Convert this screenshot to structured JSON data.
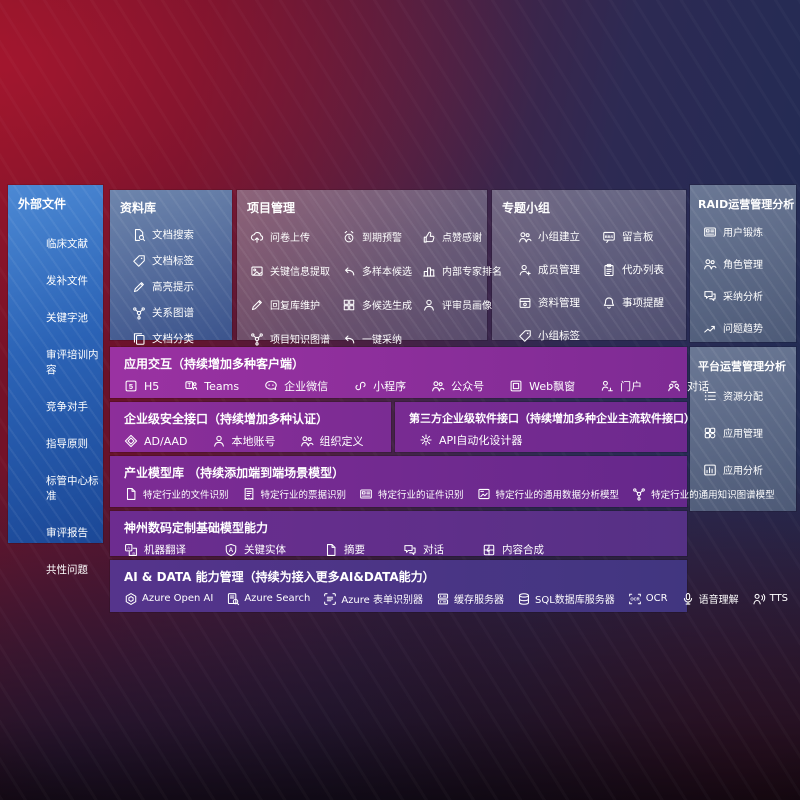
{
  "colors": {
    "sidebar_blue": "#2b63b6",
    "panel_gray": "#787490",
    "panel_slate": "#5d6b84",
    "row_magenta": "#9a32a2",
    "row_indigo": "#413680",
    "background_red": "#7d1226",
    "background_navy": "#1f2c55"
  },
  "sidebar": {
    "title": "外部文件",
    "items": [
      "临床文献",
      "发补文件",
      "关键字池",
      "审评培训内容",
      "竞争对手",
      "指导原则",
      "标管中心标准",
      "审评报告",
      "共性问题"
    ]
  },
  "panels": {
    "repo": {
      "title": "资料库",
      "items": [
        {
          "icon": "doc-search",
          "label": "文档搜索"
        },
        {
          "icon": "tag",
          "label": "文档标签"
        },
        {
          "icon": "pencil",
          "label": "高亮提示"
        },
        {
          "icon": "network",
          "label": "关系图谱"
        },
        {
          "icon": "copy",
          "label": "文档分类"
        }
      ]
    },
    "project": {
      "title": "项目管理",
      "items": [
        {
          "icon": "cloud-up",
          "label": "问卷上传"
        },
        {
          "icon": "alarm",
          "label": "到期预警"
        },
        {
          "icon": "thumbs-up",
          "label": "点赞感谢"
        },
        {
          "icon": "photo",
          "label": "关键信息提取"
        },
        {
          "icon": "reply",
          "label": "多样本候选"
        },
        {
          "icon": "rank",
          "label": "内部专家排名"
        },
        {
          "icon": "pencil",
          "label": "回复库维护"
        },
        {
          "icon": "grid",
          "label": "多候选生成"
        },
        {
          "icon": "person",
          "label": "评审员画像"
        },
        {
          "icon": "network",
          "label": "项目知识图谱"
        },
        {
          "icon": "reply",
          "label": "一键采纳"
        }
      ]
    },
    "groups": {
      "title": "专题小组",
      "items": [
        {
          "icon": "people",
          "label": "小组建立"
        },
        {
          "icon": "bbs",
          "label": "留言板"
        },
        {
          "icon": "person-plus",
          "label": "成员管理"
        },
        {
          "icon": "clipboard",
          "label": "代办列表"
        },
        {
          "icon": "archive",
          "label": "资料管理"
        },
        {
          "icon": "bell",
          "label": "事项提醒"
        },
        {
          "icon": "tag",
          "label": "小组标签"
        }
      ]
    },
    "raid": {
      "title": "RAID运营管理分析",
      "items": [
        {
          "icon": "id-card",
          "label": "用户锻炼"
        },
        {
          "icon": "people",
          "label": "角色管理"
        },
        {
          "icon": "chat",
          "label": "采纳分析"
        },
        {
          "icon": "trend",
          "label": "问题趋势"
        }
      ]
    },
    "platform": {
      "title": "平台运营管理分析",
      "items": [
        {
          "icon": "list",
          "label": "资源分配"
        },
        {
          "icon": "apps",
          "label": "应用管理"
        },
        {
          "icon": "chart",
          "label": "应用分析"
        }
      ]
    }
  },
  "rows": {
    "app": {
      "title": "应用交互（持续增加多种客户端）",
      "items": [
        {
          "icon": "h5",
          "label": "H5"
        },
        {
          "icon": "teams",
          "label": "Teams"
        },
        {
          "icon": "wechat",
          "label": "企业微信"
        },
        {
          "icon": "miniapp",
          "label": "小程序"
        },
        {
          "icon": "people",
          "label": "公众号"
        },
        {
          "icon": "window",
          "label": "Web飘窗"
        },
        {
          "icon": "portal",
          "label": "门户"
        },
        {
          "icon": "dialog",
          "label": "对话"
        }
      ]
    },
    "security": {
      "title": "企业级安全接口（持续增加多种认证）",
      "items": [
        {
          "icon": "ad",
          "label": "AD/AAD"
        },
        {
          "icon": "person",
          "label": "本地账号"
        },
        {
          "icon": "people",
          "label": "组织定义"
        }
      ]
    },
    "thirdparty": {
      "title": "第三方企业级软件接口（持续增加多种企业主流软件接口）",
      "items": [
        {
          "icon": "gear",
          "label": "API自动化设计器"
        }
      ]
    },
    "industry": {
      "title": "产业模型库 （持续添加端到端场景模型）",
      "items": [
        {
          "icon": "doc",
          "label": "特定行业的文件识别"
        },
        {
          "icon": "receipt",
          "label": "特定行业的票据识别"
        },
        {
          "icon": "id-card",
          "label": "特定行业的证件识别"
        },
        {
          "icon": "chart-img",
          "label": "特定行业的通用数据分析模型"
        },
        {
          "icon": "network",
          "label": "特定行业的通用知识图谱模型"
        }
      ]
    },
    "base": {
      "title": "神州数码定制基础模型能力",
      "items": [
        {
          "icon": "translate",
          "label": "机器翻译"
        },
        {
          "icon": "shield-a",
          "label": "关键实体"
        },
        {
          "icon": "doc",
          "label": "摘要"
        },
        {
          "icon": "chat",
          "label": "对话"
        },
        {
          "icon": "puzzle",
          "label": "内容合成"
        }
      ]
    },
    "aidata": {
      "title": "AI & DATA 能力管理（持续为接入更多AI&DATA能力）",
      "items": [
        {
          "icon": "openai",
          "label": "Azure Open AI"
        },
        {
          "icon": "search-doc",
          "label": "Azure Search"
        },
        {
          "icon": "form",
          "label": "Azure 表单识别器"
        },
        {
          "icon": "server",
          "label": "缓存服务器"
        },
        {
          "icon": "db",
          "label": "SQL数据库服务器"
        },
        {
          "icon": "ocr",
          "label": "OCR"
        },
        {
          "icon": "mic",
          "label": "语音理解"
        },
        {
          "icon": "tts",
          "label": "TTS"
        }
      ]
    }
  }
}
